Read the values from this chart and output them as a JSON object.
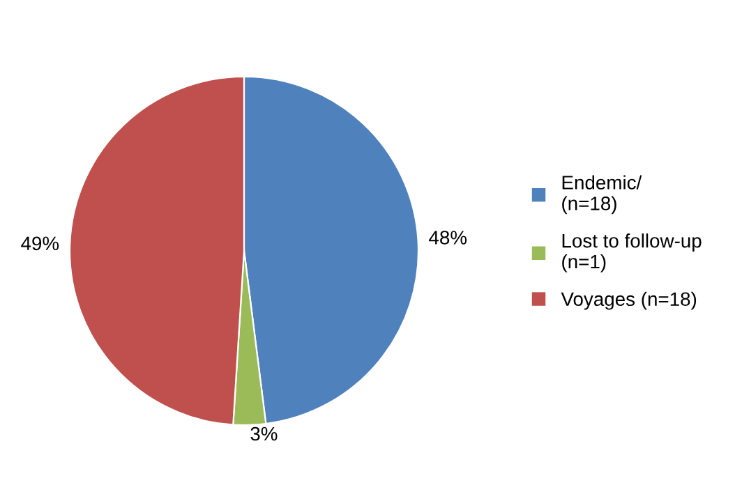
{
  "chart_data": {
    "type": "pie",
    "categories": [
      "Endemic/\n(n=18)",
      "Lost to follow-up\n(n=1)",
      "Voyages (n=18)"
    ],
    "values": [
      48,
      3,
      49
    ],
    "colors": [
      "#4f81bd",
      "#9bbb59",
      "#c0504d"
    ],
    "value_labels": [
      "48%",
      "3%",
      "49%"
    ],
    "legend": "right"
  }
}
